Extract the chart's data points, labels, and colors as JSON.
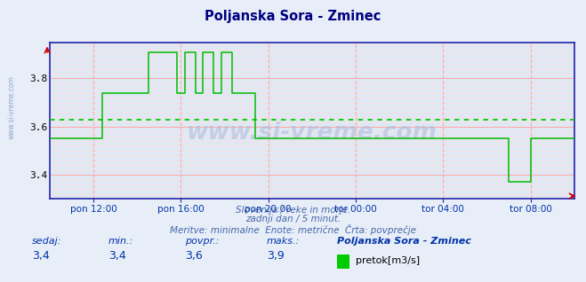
{
  "title": "Poljanska Sora - Zminec",
  "title_color": "#000080",
  "bg_color": "#e8eef8",
  "plot_bg_color": "#e0e8f4",
  "grid_color_major": "#ffaaaa",
  "grid_color_minor": "#ffdddd",
  "line_color": "#00bb00",
  "avg_line_color": "#00cc00",
  "avg_value": 3.63,
  "ylim": [
    3.3,
    3.95
  ],
  "yticks": [
    3.4,
    3.6,
    3.8
  ],
  "xtick_labels": [
    "pon 12:00",
    "pon 16:00",
    "pon 20:00",
    "tor 00:00",
    "tor 04:00",
    "tor 08:00"
  ],
  "xtick_positions": [
    0.0833,
    0.25,
    0.4167,
    0.5833,
    0.75,
    0.9167
  ],
  "footer_line1": "Slovenija / reke in morje.",
  "footer_line2": "zadnji dan / 5 minut.",
  "footer_line3": "Meritve: minimalne  Enote: metrične  Črta: povprečje",
  "footer_color": "#4466aa",
  "stat_sedaj": "3,4",
  "stat_min": "3,4",
  "stat_povpr": "3,6",
  "stat_maks": "3,9",
  "stat_label": "Poljanska Sora - Zminec",
  "stat_unit": "pretok[m3/s]",
  "watermark": "www.si-vreme.com",
  "sidebar_text": "www.si-vreme.com",
  "spine_color": "#2222aa",
  "label_color": "#0033aa"
}
